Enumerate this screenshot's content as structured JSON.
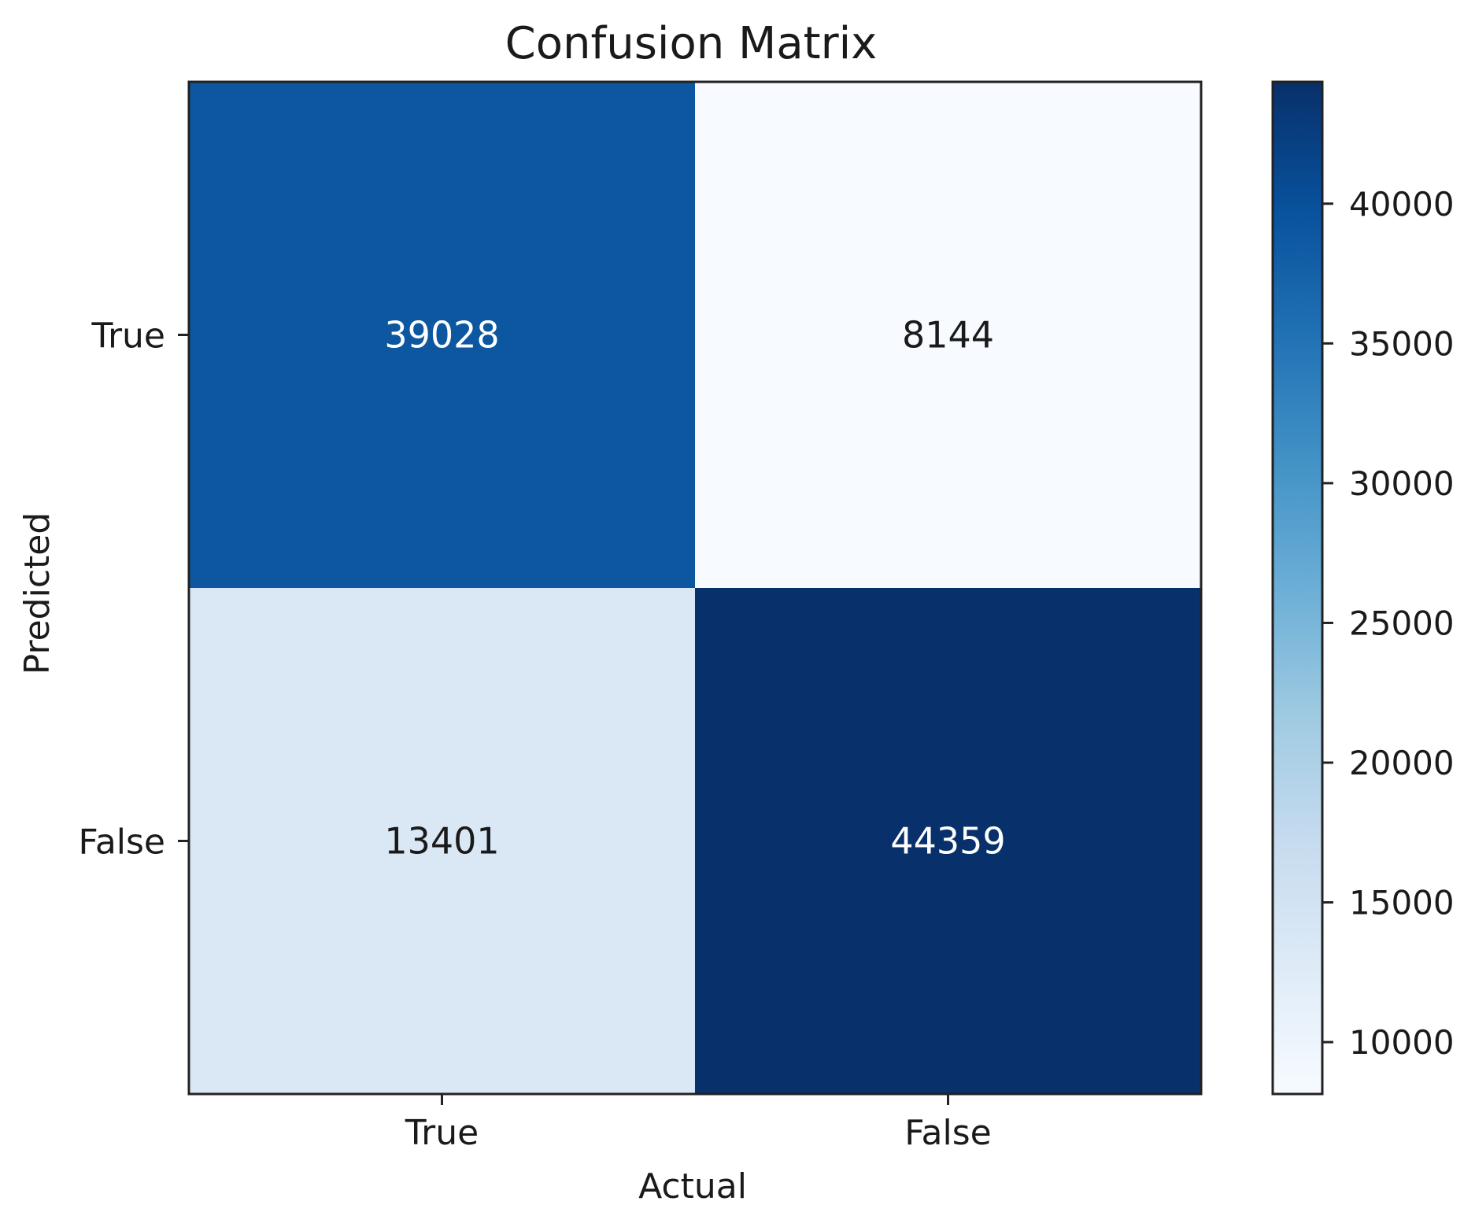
{
  "chart_data": {
    "type": "heatmap",
    "title": "Confusion Matrix",
    "xlabel": "Actual",
    "ylabel": "Predicted",
    "x_categories": [
      "True",
      "False"
    ],
    "y_categories": [
      "True",
      "False"
    ],
    "values": [
      [
        39028,
        8144
      ],
      [
        13401,
        44359
      ]
    ],
    "value_labels": [
      [
        "39028",
        "8144"
      ],
      [
        "13401",
        "44359"
      ]
    ],
    "colormap": "Blues",
    "colorbar": {
      "range": [
        8144,
        44359
      ],
      "ticks": [
        10000,
        15000,
        20000,
        25000,
        30000,
        35000,
        40000
      ],
      "tick_labels": [
        "10000",
        "15000",
        "20000",
        "25000",
        "30000",
        "35000",
        "40000"
      ]
    },
    "grid": false
  }
}
